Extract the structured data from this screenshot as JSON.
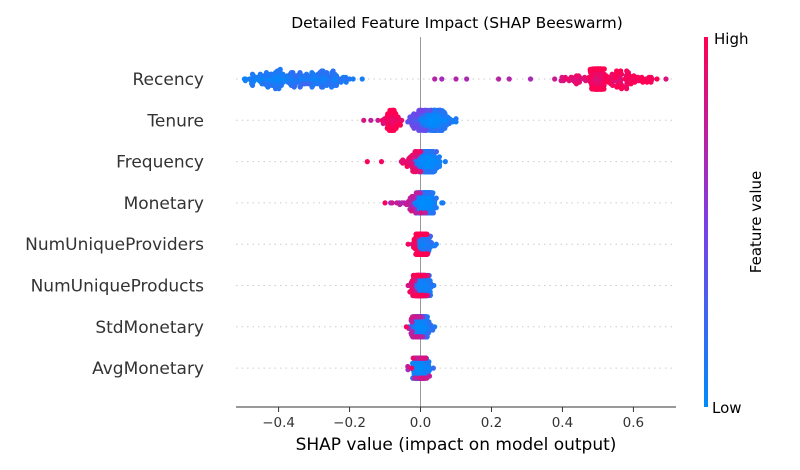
{
  "chart_data": {
    "type": "scatter",
    "subtype": "shap-beeswarm",
    "title": "Detailed Feature Impact (SHAP Beeswarm)",
    "xlabel": "SHAP value (impact on model output)",
    "xlim": [
      -0.52,
      0.72
    ],
    "xticks": [
      -0.4,
      -0.2,
      0.0,
      0.2,
      0.4,
      0.6
    ],
    "xtick_labels": [
      "−0.4",
      "−0.2",
      "0.0",
      "0.2",
      "0.4",
      "0.6"
    ],
    "features": [
      "Recency",
      "Tenure",
      "Frequency",
      "Monetary",
      "NumUniqueProviders",
      "NumUniqueProducts",
      "StdMonetary",
      "AvgMonetary"
    ],
    "points": [
      {
        "feature": "Recency",
        "distribution": [
          {
            "center": -0.42,
            "spread": 0.04,
            "count": 80,
            "feature_value": 0.05
          },
          {
            "center": -0.28,
            "spread": 0.05,
            "count": 110,
            "feature_value": 0.08
          },
          {
            "center": -0.36,
            "spread": 0.05,
            "count": 50,
            "feature_value": 0.1
          },
          {
            "center": 0.5,
            "spread": 0.01,
            "count": 160,
            "feature_value": 0.97
          },
          {
            "center": 0.58,
            "spread": 0.04,
            "count": 90,
            "feature_value": 0.92
          },
          {
            "center": 0.44,
            "spread": 0.03,
            "count": 30,
            "feature_value": 0.85
          }
        ],
        "outliers": [
          {
            "x": -0.46,
            "v": 0.08
          },
          {
            "x": -0.2,
            "v": 0.1
          },
          {
            "x": 0.04,
            "v": 0.72
          },
          {
            "x": 0.06,
            "v": 0.65
          },
          {
            "x": 0.1,
            "v": 0.7
          },
          {
            "x": 0.13,
            "v": 0.68
          },
          {
            "x": 0.22,
            "v": 0.72
          },
          {
            "x": 0.25,
            "v": 0.7
          },
          {
            "x": 0.31,
            "v": 0.66
          },
          {
            "x": 0.4,
            "v": 0.7
          },
          {
            "x": 0.65,
            "v": 0.95
          }
        ]
      },
      {
        "feature": "Tenure",
        "distribution": [
          {
            "center": 0.04,
            "spread": 0.02,
            "count": 160,
            "feature_value": 0.05
          },
          {
            "center": -0.01,
            "spread": 0.02,
            "count": 50,
            "feature_value": 0.35
          },
          {
            "center": -0.08,
            "spread": 0.012,
            "count": 70,
            "feature_value": 0.95
          }
        ],
        "outliers": [
          {
            "x": -0.16,
            "v": 0.85
          },
          {
            "x": -0.14,
            "v": 0.75
          },
          {
            "x": -0.12,
            "v": 0.8
          },
          {
            "x": -0.1,
            "v": 0.6
          },
          {
            "x": 0.09,
            "v": 0.1
          }
        ]
      },
      {
        "feature": "Frequency",
        "distribution": [
          {
            "center": 0.02,
            "spread": 0.015,
            "count": 200,
            "feature_value": 0.05
          },
          {
            "center": -0.02,
            "spread": 0.015,
            "count": 40,
            "feature_value": 0.85
          }
        ],
        "outliers": [
          {
            "x": -0.15,
            "v": 0.97
          },
          {
            "x": -0.11,
            "v": 0.95
          },
          {
            "x": -0.05,
            "v": 0.9
          },
          {
            "x": 0.07,
            "v": 0.1
          }
        ]
      },
      {
        "feature": "Monetary",
        "distribution": [
          {
            "center": 0.015,
            "spread": 0.015,
            "count": 220,
            "feature_value": 0.05
          },
          {
            "center": -0.02,
            "spread": 0.02,
            "count": 30,
            "feature_value": 0.7
          }
        ],
        "outliers": [
          {
            "x": -0.1,
            "v": 0.95
          },
          {
            "x": -0.08,
            "v": 0.8
          },
          {
            "x": -0.06,
            "v": 0.6
          },
          {
            "x": 0.06,
            "v": 0.1
          }
        ]
      },
      {
        "feature": "NumUniqueProviders",
        "distribution": [
          {
            "center": 0.0,
            "spread": 0.008,
            "count": 240,
            "feature_value": 0.95
          },
          {
            "center": 0.01,
            "spread": 0.012,
            "count": 80,
            "feature_value": 0.1
          }
        ],
        "outliers": [
          {
            "x": -0.035,
            "v": 0.95
          },
          {
            "x": 0.04,
            "v": 0.1
          }
        ]
      },
      {
        "feature": "NumUniqueProducts",
        "distribution": [
          {
            "center": -0.005,
            "spread": 0.01,
            "count": 180,
            "feature_value": 0.85
          },
          {
            "center": 0.008,
            "spread": 0.012,
            "count": 120,
            "feature_value": 0.1
          }
        ],
        "outliers": [
          {
            "x": -0.03,
            "v": 0.95
          },
          {
            "x": 0.03,
            "v": 0.1
          }
        ]
      },
      {
        "feature": "StdMonetary",
        "distribution": [
          {
            "center": 0.0,
            "spread": 0.012,
            "count": 250,
            "feature_value": 0.1
          },
          {
            "center": -0.01,
            "spread": 0.01,
            "count": 40,
            "feature_value": 0.7
          }
        ],
        "outliers": [
          {
            "x": -0.04,
            "v": 0.95
          },
          {
            "x": 0.04,
            "v": 0.1
          }
        ]
      },
      {
        "feature": "AvgMonetary",
        "distribution": [
          {
            "center": 0.0,
            "spread": 0.01,
            "count": 260,
            "feature_value": 0.08
          },
          {
            "center": -0.005,
            "spread": 0.01,
            "count": 30,
            "feature_value": 0.75
          }
        ],
        "outliers": [
          {
            "x": -0.025,
            "v": 0.95
          },
          {
            "x": 0.02,
            "v": 0.1
          }
        ]
      }
    ],
    "colorbar": {
      "label": "Feature value",
      "high_label": "High",
      "low_label": "Low",
      "low_color": "#008bfb",
      "mid_color": "#7d3ee6",
      "high_color": "#ff0052"
    }
  }
}
